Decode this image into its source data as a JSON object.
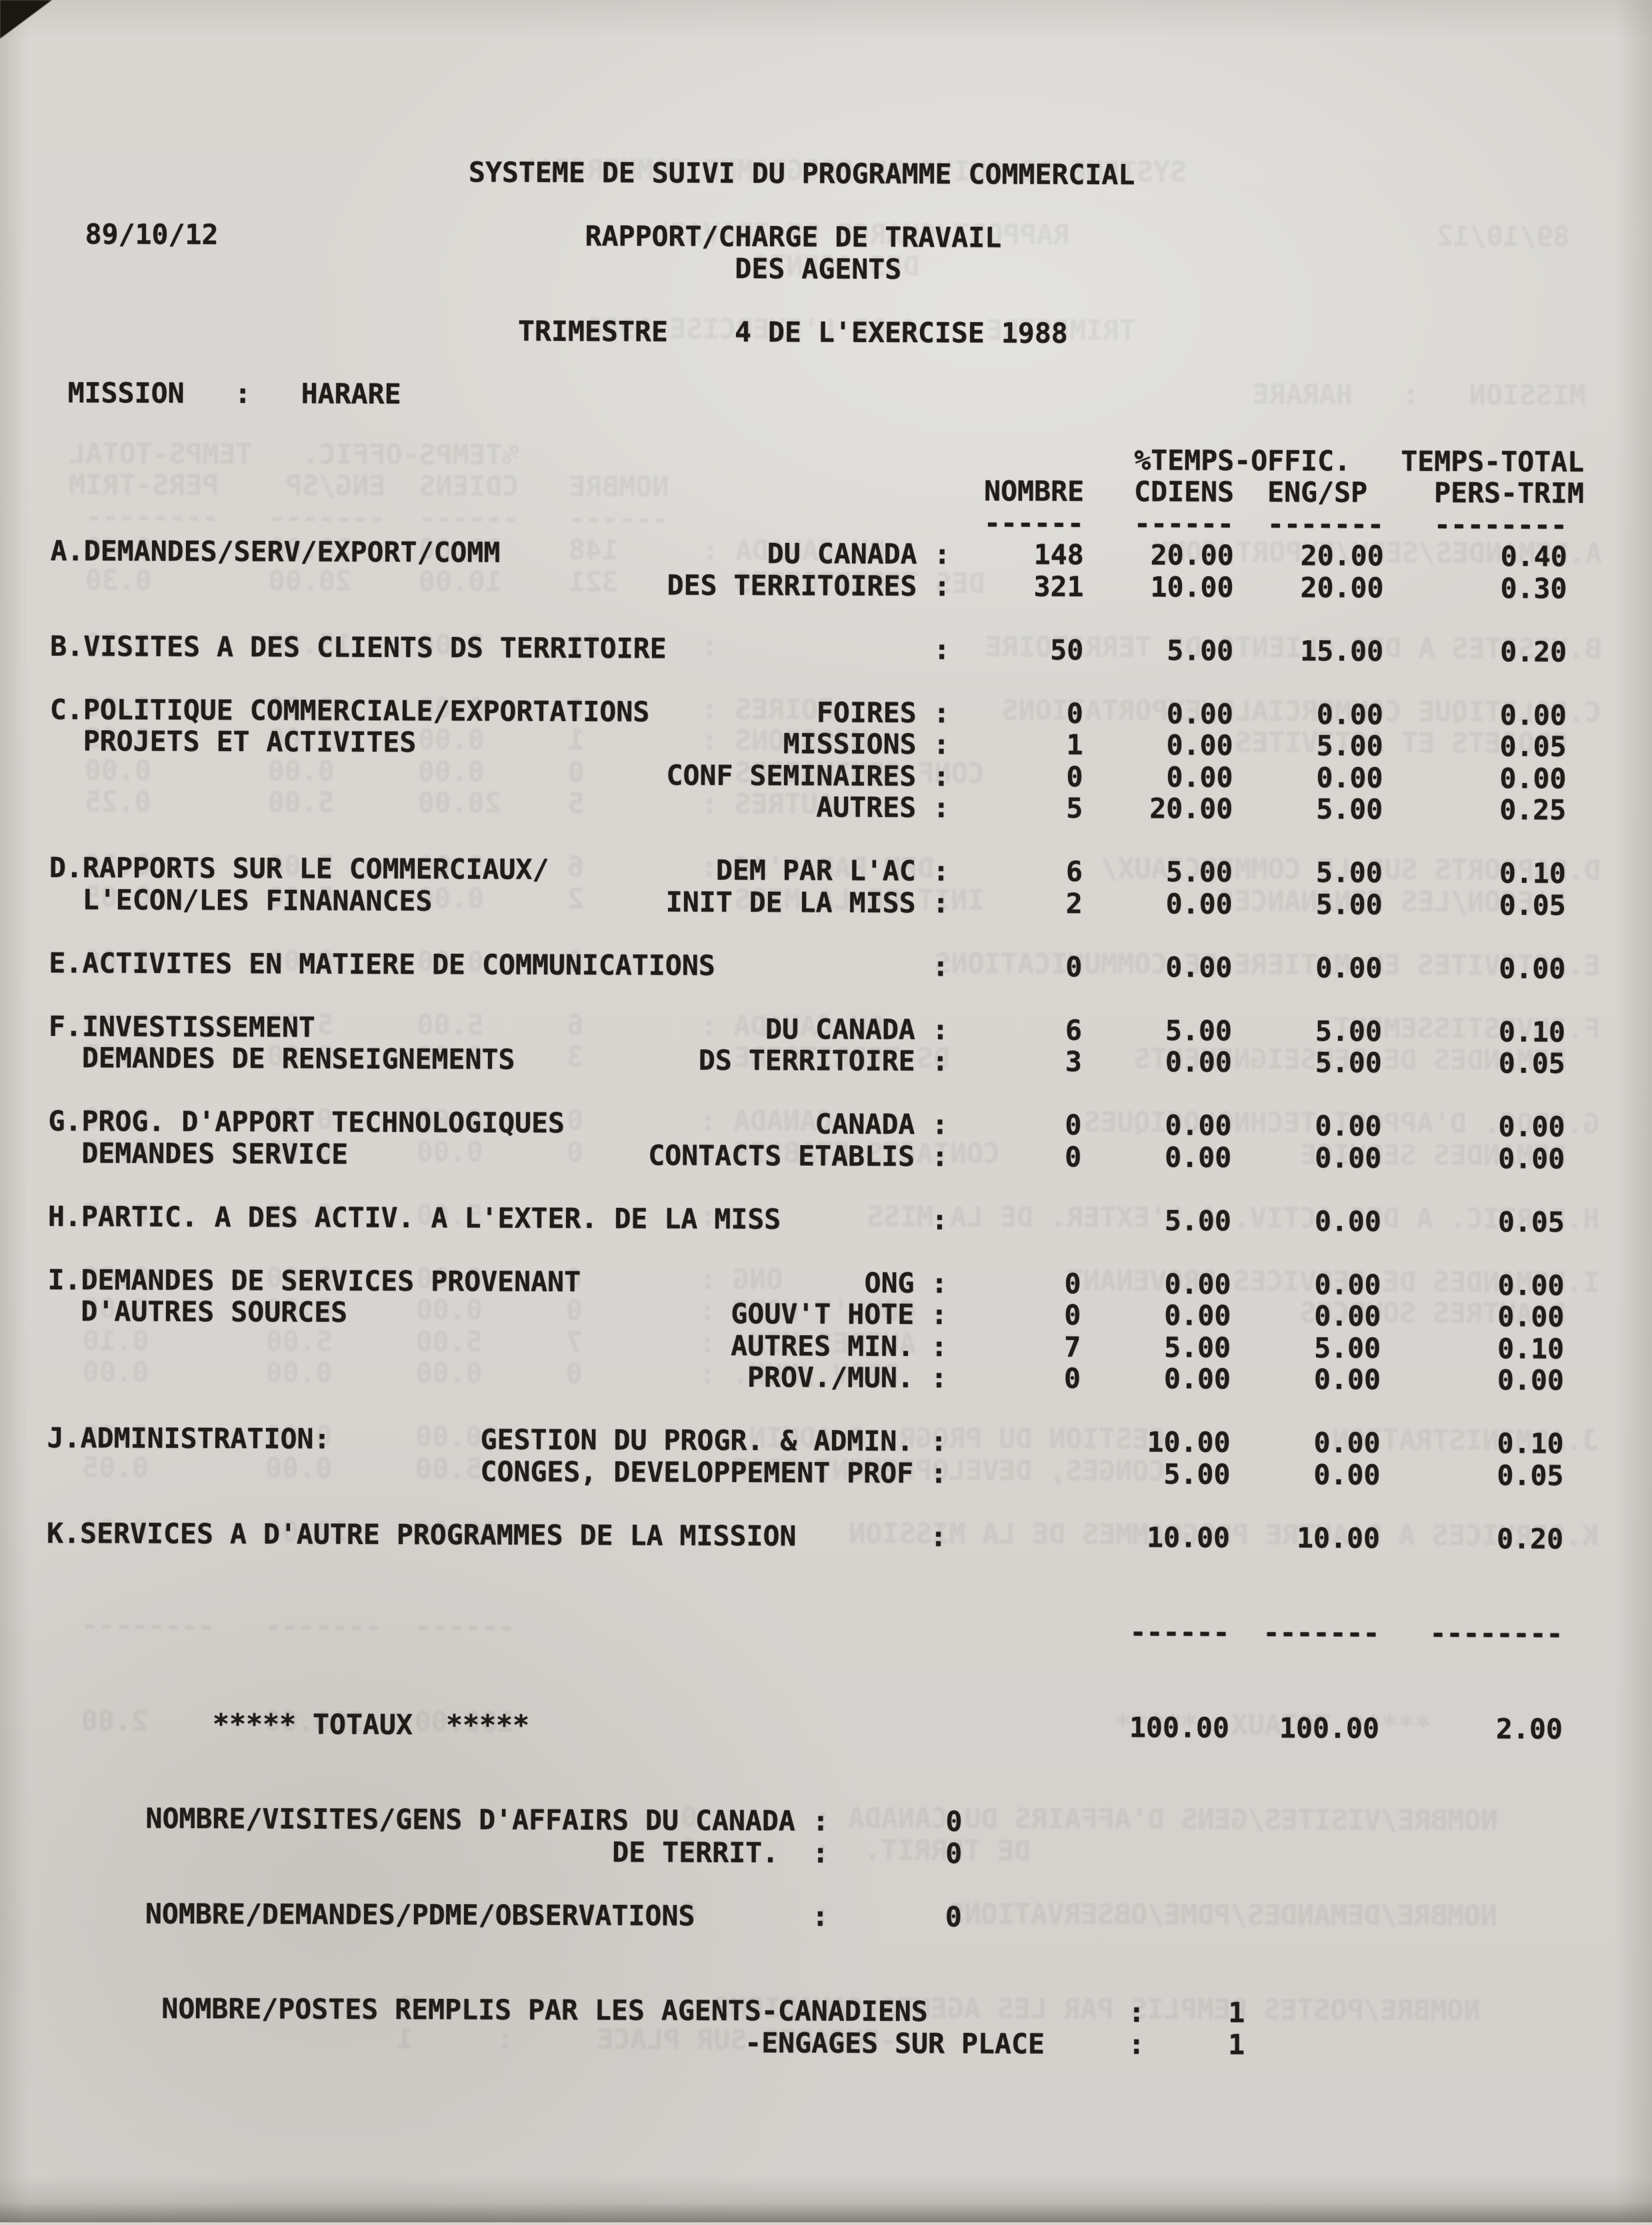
{
  "sep": ":",
  "header": {
    "system_title": "SYSTEME DE SUIVI DU PROGRAMME COMMERCIAL",
    "date": "89/10/12",
    "report_line1": "RAPPORT/CHARGE DE TRAVAIL",
    "report_line2": "DES AGENTS",
    "trimestre_label": "TRIMESTRE",
    "trimestre_value": "4",
    "exercise_text": "DE L'EXERCISE 1988",
    "mission_label": "MISSION",
    "mission_value": "HARARE"
  },
  "table": {
    "header": {
      "group1": "%TEMPS-OFFIC.",
      "group2": "TEMPS-TOTAL",
      "col_nombre": "NOMBRE",
      "col_cdiens": "CDIENS",
      "col_engsp": "ENG/SP",
      "col_pers": "PERS-TRIM",
      "rule": [
        "------",
        "------",
        "-------",
        "--------"
      ]
    },
    "rows": [
      {
        "label": "A.DEMANDES/SERV/EXPORT/COMM",
        "sublabel": "DU CANADA",
        "nombre": "148",
        "cdiens": "20.00",
        "engsp": "20.00",
        "pers": "0.40"
      },
      {
        "label": "",
        "sublabel": "DES TERRITOIRES",
        "nombre": "321",
        "cdiens": "10.00",
        "engsp": "20.00",
        "pers": "0.30"
      },
      {
        "label": "B.VISITES A DES CLIENTS DS TERRITOIRE",
        "sublabel": "",
        "nombre": "50",
        "cdiens": "5.00",
        "engsp": "15.00",
        "pers": "0.20"
      },
      {
        "label": "C.POLITIQUE COMMERCIALE/EXPORTATIONS",
        "sublabel": "FOIRES",
        "nombre": "0",
        "cdiens": "0.00",
        "engsp": "0.00",
        "pers": "0.00"
      },
      {
        "label": "PROJETS ET ACTIVITES",
        "sublabel": "MISSIONS",
        "nombre": "1",
        "cdiens": "0.00",
        "engsp": "5.00",
        "pers": "0.05"
      },
      {
        "label": "",
        "sublabel": "CONF SEMINAIRES",
        "nombre": "0",
        "cdiens": "0.00",
        "engsp": "0.00",
        "pers": "0.00"
      },
      {
        "label": "",
        "sublabel": "AUTRES",
        "nombre": "5",
        "cdiens": "20.00",
        "engsp": "5.00",
        "pers": "0.25"
      },
      {
        "label": "D.RAPPORTS SUR LE COMMERCIAUX/",
        "sublabel": "DEM PAR L'AC",
        "nombre": "6",
        "cdiens": "5.00",
        "engsp": "5.00",
        "pers": "0.10"
      },
      {
        "label": "L'ECON/LES FINANANCES",
        "sublabel": "INIT DE LA MISS",
        "nombre": "2",
        "cdiens": "0.00",
        "engsp": "5.00",
        "pers": "0.05"
      },
      {
        "label": "E.ACTIVITES EN MATIERE DE COMMUNICATIONS",
        "sublabel": "",
        "nombre": "0",
        "cdiens": "0.00",
        "engsp": "0.00",
        "pers": "0.00"
      },
      {
        "label": "F.INVESTISSEMENT",
        "sublabel": "DU CANADA",
        "nombre": "6",
        "cdiens": "5.00",
        "engsp": "5.00",
        "pers": "0.10"
      },
      {
        "label": "DEMANDES DE RENSEIGNEMENTS",
        "sublabel": "DS TERRITOIRE",
        "nombre": "3",
        "cdiens": "0.00",
        "engsp": "5.00",
        "pers": "0.05"
      },
      {
        "label": "G.PROG. D'APPORT TECHNOLOGIQUES",
        "sublabel": "CANADA",
        "nombre": "0",
        "cdiens": "0.00",
        "engsp": "0.00",
        "pers": "0.00"
      },
      {
        "label": "DEMANDES SERVICE",
        "sublabel": "CONTACTS ETABLIS",
        "nombre": "0",
        "cdiens": "0.00",
        "engsp": "0.00",
        "pers": "0.00"
      },
      {
        "label": "H.PARTIC. A DES ACTIV. A L'EXTER. DE LA MISS",
        "sublabel": "",
        "nombre": "",
        "cdiens": "5.00",
        "engsp": "0.00",
        "pers": "0.05"
      },
      {
        "label": "I.DEMANDES DE SERVICES PROVENANT",
        "sublabel": "ONG",
        "nombre": "0",
        "cdiens": "0.00",
        "engsp": "0.00",
        "pers": "0.00"
      },
      {
        "label": "D'AUTRES SOURCES",
        "sublabel": "GOUV'T HOTE",
        "nombre": "0",
        "cdiens": "0.00",
        "engsp": "0.00",
        "pers": "0.00"
      },
      {
        "label": "",
        "sublabel": "AUTRES MIN.",
        "nombre": "7",
        "cdiens": "5.00",
        "engsp": "5.00",
        "pers": "0.10"
      },
      {
        "label": "",
        "sublabel": "PROV./MUN.",
        "nombre": "0",
        "cdiens": "0.00",
        "engsp": "0.00",
        "pers": "0.00"
      },
      {
        "label": "J.ADMINISTRATION:",
        "sublabel": "GESTION DU PROGR. & ADMIN.",
        "nombre": "",
        "cdiens": "10.00",
        "engsp": "0.00",
        "pers": "0.10"
      },
      {
        "label": "",
        "sublabel": "CONGES, DEVELOPPEMENT PROF",
        "nombre": "",
        "cdiens": "5.00",
        "engsp": "0.00",
        "pers": "0.05"
      },
      {
        "label": "K.SERVICES A D'AUTRE PROGRAMMES DE LA MISSION",
        "sublabel": "",
        "nombre": "",
        "cdiens": "10.00",
        "engsp": "10.00",
        "pers": "0.20"
      }
    ],
    "totals_rule": [
      "------",
      "-------",
      "--------"
    ],
    "totals": {
      "stars": "*****",
      "label": "TOTAUX",
      "cdiens": "100.00",
      "engsp": "100.00",
      "pers": "2.00"
    }
  },
  "footer": [
    {
      "label": "NOMBRE/VISITES/GENS D'AFFAIRS DU CANADA",
      "value": "0"
    },
    {
      "label": "DE TERRIT.",
      "value": "0"
    },
    {
      "label": "NOMBRE/DEMANDES/PDME/OBSERVATIONS",
      "value": "0"
    },
    {
      "label": "NOMBRE/POSTES REMPLIS PAR LES AGENTS-CANADIENS",
      "value": "1"
    },
    {
      "label": "-ENGAGES SUR PLACE",
      "value": "1"
    }
  ]
}
